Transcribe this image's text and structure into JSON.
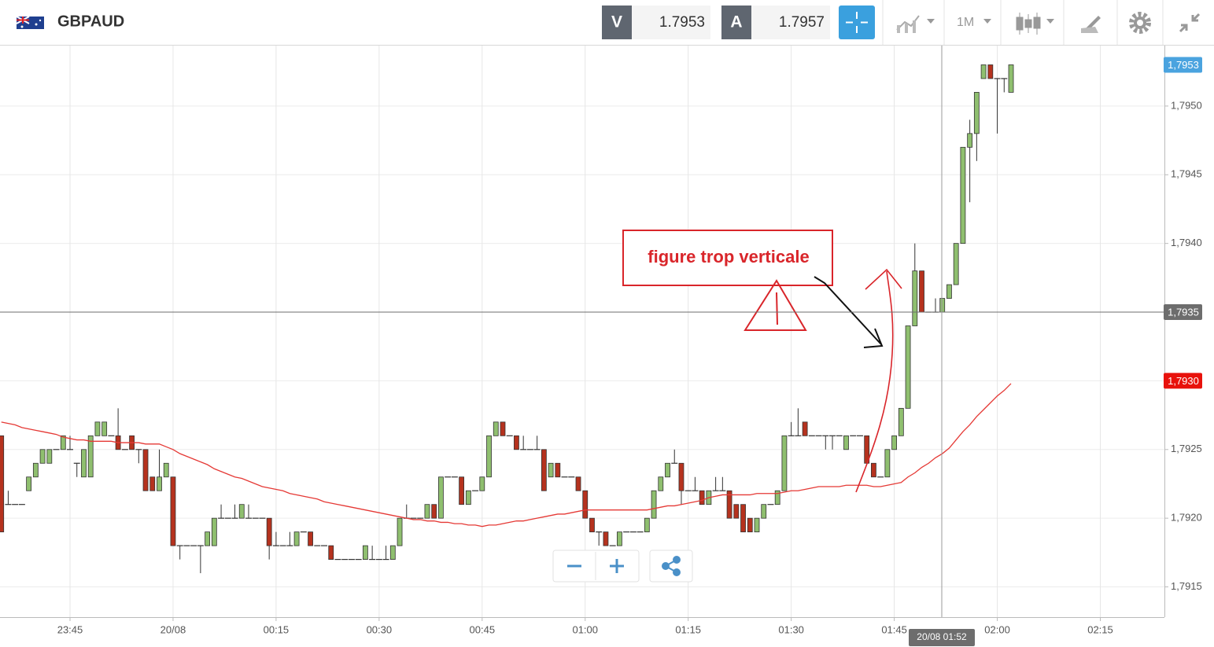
{
  "header": {
    "symbol": "GBPAUD",
    "bid_label": "V",
    "bid": "1.7953",
    "ask_label": "A",
    "ask": "1.7957",
    "timeframe": "1M"
  },
  "annotation": {
    "text": "figure trop verticale"
  },
  "chart_data": {
    "type": "candlestick",
    "categories": [
      null,
      null,
      null,
      null,
      null,
      null,
      null,
      null,
      null,
      null,
      "23:45",
      null,
      null,
      null,
      null,
      null,
      null,
      null,
      null,
      null,
      null,
      null,
      null,
      null,
      null,
      "20/08",
      null,
      null,
      null,
      null,
      null,
      null,
      null,
      null,
      null,
      null,
      null,
      null,
      null,
      null,
      "00:15",
      null,
      null,
      null,
      null,
      null,
      null,
      null,
      null,
      null,
      null,
      null,
      null,
      null,
      null,
      "00:30",
      null,
      null,
      null,
      null,
      null,
      null,
      null,
      null,
      null,
      null,
      null,
      null,
      null,
      null,
      "00:45",
      null,
      null,
      null,
      null,
      null,
      null,
      null,
      null,
      null,
      null,
      null,
      null,
      null,
      null,
      "01:00",
      null,
      null,
      null,
      null,
      null,
      null,
      null,
      null,
      null,
      null,
      null,
      null,
      null,
      null,
      "01:15",
      null,
      null,
      null,
      null,
      null,
      null,
      null,
      null,
      null,
      null,
      null,
      null,
      null,
      null,
      "01:30",
      null,
      null,
      null,
      null,
      null,
      null,
      null,
      null,
      null,
      null,
      null,
      null,
      null,
      null,
      "01:45",
      null,
      null,
      null,
      null,
      null,
      null,
      null,
      null,
      null,
      null,
      null,
      null,
      null,
      null,
      "02:00",
      null,
      null,
      null,
      null,
      null,
      null,
      null,
      null,
      null,
      null,
      null,
      null,
      null,
      null,
      "02:15",
      null,
      null,
      null,
      null,
      null,
      null,
      null,
      null,
      null
    ],
    "open": [
      1.7926,
      1.7921,
      1.7921,
      1.7921,
      1.7922,
      1.7923,
      1.7924,
      1.7924,
      1.7925,
      1.7925,
      1.7925,
      1.7924,
      1.7923,
      1.7923,
      1.7926,
      1.7926,
      1.7926,
      1.7926,
      1.7925,
      1.7926,
      1.7925,
      1.7925,
      1.7923,
      1.7922,
      1.7923,
      1.7923,
      1.7918,
      1.7918,
      1.7918,
      1.7918,
      1.7918,
      1.7918,
      1.792,
      1.792,
      1.792,
      1.792,
      1.792,
      1.792,
      1.792,
      1.792,
      1.7918,
      1.7918,
      1.7918,
      1.7918,
      1.7919,
      1.7919,
      1.7918,
      1.7918,
      1.7918,
      1.7917,
      1.7917,
      1.7917,
      1.7917,
      1.7917,
      1.7917,
      1.7917,
      1.7917,
      1.7917,
      1.7918,
      1.792,
      1.792,
      1.792,
      1.792,
      1.7921,
      1.792,
      1.7923,
      1.7923,
      1.7923,
      1.7921,
      1.7922,
      1.7922,
      1.7923,
      1.7926,
      1.7927,
      1.7926,
      1.7926,
      1.7925,
      1.7925,
      1.7925,
      1.7925,
      1.7923,
      1.7924,
      1.7923,
      1.7923,
      1.7923,
      1.7922,
      1.792,
      1.7919,
      1.7919,
      1.7918,
      1.7918,
      1.7919,
      1.7919,
      1.7919,
      1.7919,
      1.792,
      1.7922,
      1.7923,
      1.7924,
      1.7924,
      1.7922,
      1.7922,
      1.7922,
      1.7921,
      1.7922,
      1.7922,
      1.7922,
      1.7921,
      1.7921,
      1.792,
      1.7919,
      1.792,
      1.7921,
      1.7921,
      1.7922,
      1.7926,
      1.7926,
      1.7927,
      1.7926,
      1.7926,
      1.7926,
      1.7926,
      1.7926,
      1.7925,
      1.7926,
      1.7926,
      1.7926,
      1.7924,
      1.7923,
      1.7923,
      1.7925,
      1.7926,
      1.7928,
      1.7934,
      1.7938,
      1.7935,
      1.7935,
      1.7935,
      1.7936,
      1.7937,
      1.794,
      1.7947,
      1.7948,
      1.7952,
      1.7953,
      1.7952,
      1.7952,
      1.7951,
      null,
      null,
      null,
      null,
      null,
      null,
      null,
      null,
      null,
      null,
      null,
      null,
      null,
      null,
      null,
      null,
      null,
      null,
      null,
      null,
      null,
      null
    ],
    "high": [
      1.7926,
      1.7922,
      1.7921,
      1.7921,
      1.7923,
      1.7924,
      1.7925,
      1.7925,
      1.7925,
      1.7926,
      1.7926,
      1.7924,
      1.7925,
      1.7926,
      1.7927,
      1.7927,
      1.7926,
      1.7928,
      1.7925,
      1.7926,
      1.7925,
      1.7925,
      1.7923,
      1.7925,
      1.7924,
      1.7923,
      1.7918,
      1.7918,
      1.7918,
      1.7918,
      1.7919,
      1.792,
      1.7921,
      1.792,
      1.7921,
      1.7921,
      1.7921,
      1.792,
      1.792,
      1.792,
      1.7919,
      1.7918,
      1.7919,
      1.7919,
      1.7919,
      1.7919,
      1.7918,
      1.7918,
      1.7918,
      1.7917,
      1.7917,
      1.7917,
      1.7917,
      1.7918,
      1.7918,
      1.7917,
      1.7918,
      1.7918,
      1.792,
      1.7921,
      1.792,
      1.792,
      1.7921,
      1.7921,
      1.7923,
      1.7923,
      1.7923,
      1.7923,
      1.7922,
      1.7922,
      1.7923,
      1.7926,
      1.7927,
      1.7927,
      1.7926,
      1.7926,
      1.7926,
      1.7925,
      1.7926,
      1.7925,
      1.7924,
      1.7924,
      1.7923,
      1.7923,
      1.7923,
      1.7922,
      1.792,
      1.7919,
      1.7919,
      1.7918,
      1.7919,
      1.7919,
      1.7919,
      1.7919,
      1.792,
      1.7922,
      1.7923,
      1.7924,
      1.7925,
      1.7924,
      1.7922,
      1.7923,
      1.7922,
      1.7922,
      1.7923,
      1.7923,
      1.7922,
      1.7921,
      1.7921,
      1.792,
      1.792,
      1.7921,
      1.7921,
      1.7922,
      1.7926,
      1.7927,
      1.7928,
      1.7927,
      1.7926,
      1.7926,
      1.7926,
      1.7926,
      1.7926,
      1.7926,
      1.7926,
      1.7926,
      1.7926,
      1.7924,
      1.7923,
      1.7925,
      1.7926,
      1.7928,
      1.7934,
      1.794,
      1.7938,
      1.7935,
      1.7936,
      1.7936,
      1.7937,
      1.794,
      1.7947,
      1.7949,
      1.7951,
      1.7953,
      1.7953,
      1.7952,
      1.7952,
      1.7953,
      null,
      null,
      null,
      null,
      null,
      null,
      null,
      null,
      null,
      null,
      null,
      null,
      null,
      null,
      null,
      null,
      null,
      null,
      null,
      null,
      null,
      null
    ],
    "low": [
      1.7919,
      1.7921,
      1.7921,
      1.7921,
      1.7922,
      1.7923,
      1.7924,
      1.7924,
      1.7925,
      1.7925,
      1.7925,
      1.7923,
      1.7923,
      1.7923,
      1.7926,
      1.7926,
      1.7926,
      1.7925,
      1.7925,
      1.7925,
      1.7924,
      1.7922,
      1.7922,
      1.7922,
      1.7923,
      1.7918,
      1.7917,
      1.7918,
      1.7918,
      1.7916,
      1.7918,
      1.7918,
      1.792,
      1.792,
      1.792,
      1.792,
      1.792,
      1.792,
      1.792,
      1.7917,
      1.7918,
      1.7918,
      1.7918,
      1.7918,
      1.7919,
      1.7918,
      1.7918,
      1.7918,
      1.7917,
      1.7917,
      1.7917,
      1.7917,
      1.7917,
      1.7917,
      1.7917,
      1.7917,
      1.7917,
      1.7917,
      1.7918,
      1.792,
      1.792,
      1.792,
      1.792,
      1.792,
      1.792,
      1.7923,
      1.7923,
      1.7921,
      1.7921,
      1.7922,
      1.7922,
      1.7923,
      1.7926,
      1.7926,
      1.7926,
      1.7925,
      1.7925,
      1.7925,
      1.7925,
      1.7922,
      1.7923,
      1.7923,
      1.7923,
      1.7923,
      1.7922,
      1.792,
      1.7919,
      1.7918,
      1.7918,
      1.7918,
      1.7918,
      1.7919,
      1.7919,
      1.7919,
      1.7919,
      1.792,
      1.7922,
      1.7923,
      1.7924,
      1.7921,
      1.7922,
      1.7922,
      1.7921,
      1.7921,
      1.7922,
      1.7922,
      1.792,
      1.792,
      1.7919,
      1.7919,
      1.7919,
      1.792,
      1.7921,
      1.7921,
      1.7922,
      1.7926,
      1.7926,
      1.7926,
      1.7926,
      1.7926,
      1.7925,
      1.7925,
      1.7926,
      1.7925,
      1.7926,
      1.7926,
      1.7924,
      1.7923,
      1.7923,
      1.7923,
      1.7925,
      1.7926,
      1.7928,
      1.7934,
      1.7935,
      1.7935,
      1.7935,
      1.7935,
      1.7936,
      1.7937,
      1.794,
      1.7943,
      1.7946,
      1.7952,
      1.7952,
      1.7948,
      1.7951,
      1.7951,
      null,
      null,
      null,
      null,
      null,
      null,
      null,
      null,
      null,
      null,
      null,
      null,
      null,
      null,
      null,
      null,
      null,
      null,
      null,
      null,
      null,
      null
    ],
    "close": [
      1.7919,
      1.7921,
      1.7921,
      1.7921,
      1.7923,
      1.7924,
      1.7925,
      1.7925,
      1.7925,
      1.7926,
      1.7925,
      1.7924,
      1.7925,
      1.7926,
      1.7927,
      1.7927,
      1.7926,
      1.7925,
      1.7925,
      1.7925,
      1.7925,
      1.7922,
      1.7922,
      1.7923,
      1.7924,
      1.7918,
      1.7918,
      1.7918,
      1.7918,
      1.7918,
      1.7919,
      1.792,
      1.792,
      1.792,
      1.792,
      1.7921,
      1.792,
      1.792,
      1.792,
      1.7918,
      1.7918,
      1.7918,
      1.7918,
      1.7919,
      1.7919,
      1.7918,
      1.7918,
      1.7918,
      1.7917,
      1.7917,
      1.7917,
      1.7917,
      1.7917,
      1.7918,
      1.7917,
      1.7917,
      1.7917,
      1.7918,
      1.792,
      1.792,
      1.792,
      1.792,
      1.7921,
      1.792,
      1.7923,
      1.7923,
      1.7923,
      1.7921,
      1.7922,
      1.7922,
      1.7923,
      1.7926,
      1.7927,
      1.7926,
      1.7926,
      1.7925,
      1.7925,
      1.7925,
      1.7925,
      1.7922,
      1.7924,
      1.7923,
      1.7923,
      1.7923,
      1.7922,
      1.792,
      1.7919,
      1.7919,
      1.7918,
      1.7918,
      1.7919,
      1.7919,
      1.7919,
      1.7919,
      1.792,
      1.7922,
      1.7923,
      1.7924,
      1.7924,
      1.7922,
      1.7922,
      1.7922,
      1.7921,
      1.7922,
      1.7922,
      1.7922,
      1.792,
      1.792,
      1.7919,
      1.7919,
      1.792,
      1.7921,
      1.7921,
      1.7922,
      1.7926,
      1.7926,
      1.7926,
      1.7926,
      1.7926,
      1.7926,
      1.7926,
      1.7926,
      1.7926,
      1.7926,
      1.7926,
      1.7926,
      1.7924,
      1.7923,
      1.7923,
      1.7925,
      1.7926,
      1.7928,
      1.7934,
      1.7938,
      1.7935,
      1.7935,
      1.7935,
      1.7936,
      1.7937,
      1.794,
      1.7947,
      1.7948,
      1.7951,
      1.7953,
      1.7952,
      1.7952,
      1.7952,
      1.7953,
      null,
      null,
      null,
      null,
      null,
      null,
      null,
      null,
      null,
      null,
      null,
      null,
      null,
      null,
      null,
      null,
      null,
      null,
      null,
      null,
      null,
      null
    ],
    "up_color": "#8fbf6f",
    "down_color": "#b5321e",
    "outline_color": "#333333",
    "moving_average": {
      "color": "#e53935",
      "values": [
        1.7927,
        1.79269,
        1.79268,
        1.79266,
        1.79265,
        1.79264,
        1.79263,
        1.79262,
        1.79261,
        1.79259,
        1.79258,
        1.79257,
        1.79257,
        1.79256,
        1.79256,
        1.79256,
        1.79256,
        1.79255,
        1.79255,
        1.79255,
        1.79255,
        1.79254,
        1.79254,
        1.79254,
        1.79252,
        1.7925,
        1.79247,
        1.79245,
        1.79243,
        1.79241,
        1.79239,
        1.79236,
        1.79234,
        1.79232,
        1.7923,
        1.79229,
        1.79227,
        1.79225,
        1.79223,
        1.79222,
        1.79221,
        1.7922,
        1.79218,
        1.79217,
        1.79216,
        1.79215,
        1.79214,
        1.79212,
        1.79211,
        1.7921,
        1.79209,
        1.79208,
        1.79207,
        1.79206,
        1.79205,
        1.79204,
        1.79203,
        1.79202,
        1.79201,
        1.792,
        1.79199,
        1.79199,
        1.79198,
        1.79198,
        1.79197,
        1.79197,
        1.79196,
        1.79196,
        1.79195,
        1.79195,
        1.79194,
        1.79195,
        1.79195,
        1.79196,
        1.79197,
        1.79198,
        1.79198,
        1.79199,
        1.792,
        1.79201,
        1.79202,
        1.79203,
        1.79203,
        1.79204,
        1.79205,
        1.79206,
        1.79206,
        1.79206,
        1.79206,
        1.79206,
        1.79206,
        1.79206,
        1.79206,
        1.79206,
        1.79206,
        1.79207,
        1.79208,
        1.79209,
        1.79209,
        1.7921,
        1.79211,
        1.79212,
        1.79213,
        1.79215,
        1.79216,
        1.79217,
        1.79217,
        1.79217,
        1.79217,
        1.79217,
        1.79218,
        1.79218,
        1.79218,
        1.79218,
        1.79219,
        1.7922,
        1.7922,
        1.79221,
        1.79222,
        1.79223,
        1.79223,
        1.79223,
        1.79223,
        1.79224,
        1.79224,
        1.79224,
        1.79224,
        1.79223,
        1.79223,
        1.79224,
        1.79225,
        1.79226,
        1.7923,
        1.79233,
        1.79237,
        1.7924,
        1.79244,
        1.79247,
        1.79251,
        1.79257,
        1.79263,
        1.79268,
        1.79274,
        1.79279,
        1.79284,
        1.79289,
        1.79293,
        1.79298,
        null,
        null,
        null,
        null,
        null,
        null,
        null,
        null,
        null,
        null,
        null,
        null,
        null,
        null,
        null,
        null,
        null,
        null,
        null,
        null,
        null,
        null
      ]
    },
    "ylim": [
      1.79128,
      1.79544
    ],
    "yticks": [
      {
        "value": 1.7915,
        "label": "1,7915"
      },
      {
        "value": 1.792,
        "label": "1,7920"
      },
      {
        "value": 1.7925,
        "label": "1,7925"
      },
      {
        "value": 1.793,
        "label": "1,7930"
      },
      {
        "value": 1.7935,
        "label": "1,7935"
      },
      {
        "value": 1.794,
        "label": "1,7940"
      },
      {
        "value": 1.7945,
        "label": "1,7945"
      },
      {
        "value": 1.795,
        "label": "1,7950"
      }
    ],
    "grid": true,
    "last_price_tag": {
      "value": 1.7953,
      "label": "1,7953",
      "color": "#4aa3df"
    },
    "average_tag": {
      "value": 1.793,
      "label": "1,7930",
      "color": "#e8120c"
    },
    "crosshair": {
      "value": 1.7935,
      "label": "1,7935",
      "time": "20/08 01:52",
      "color": "#6d6d6d"
    }
  }
}
